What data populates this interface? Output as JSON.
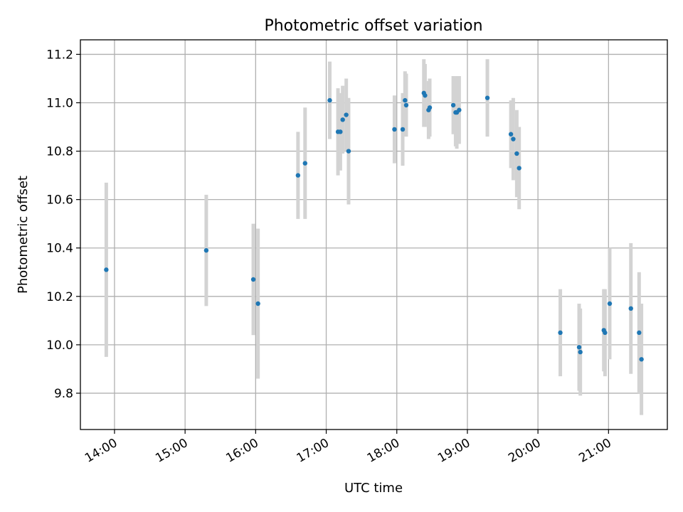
{
  "chart_data": {
    "type": "scatter",
    "title": "Photometric offset variation",
    "xlabel": "UTC time",
    "ylabel": "Photometric offset",
    "grid": true,
    "xlim": [
      "13:31",
      "21:50"
    ],
    "ylim": [
      9.65,
      11.26
    ],
    "x_ticks": [
      "14:00",
      "15:00",
      "16:00",
      "17:00",
      "18:00",
      "19:00",
      "20:00",
      "21:00"
    ],
    "y_ticks": [
      "9.8",
      "10.0",
      "10.2",
      "10.4",
      "10.6",
      "10.8",
      "11.0",
      "11.2"
    ],
    "colors": {
      "marker": "#1f77b4",
      "errorbar": "#d3d3d3",
      "grid": "#b0b0b0"
    },
    "series": [
      {
        "points": [
          {
            "x": "13:53",
            "y": 10.31,
            "yerr": 0.36
          },
          {
            "x": "15:18",
            "y": 10.39,
            "yerr": 0.23
          },
          {
            "x": "15:58",
            "y": 10.27,
            "yerr": 0.23
          },
          {
            "x": "16:02",
            "y": 10.17,
            "yerr": 0.31
          },
          {
            "x": "16:36",
            "y": 10.7,
            "yerr": 0.18
          },
          {
            "x": "16:42",
            "y": 10.75,
            "yerr": 0.23
          },
          {
            "x": "17:03",
            "y": 11.01,
            "yerr": 0.16
          },
          {
            "x": "17:10",
            "y": 10.88,
            "yerr": 0.18
          },
          {
            "x": "17:12",
            "y": 10.88,
            "yerr": 0.16
          },
          {
            "x": "17:14",
            "y": 10.93,
            "yerr": 0.14
          },
          {
            "x": "17:17",
            "y": 10.95,
            "yerr": 0.15
          },
          {
            "x": "17:19",
            "y": 10.8,
            "yerr": 0.22
          },
          {
            "x": "17:58",
            "y": 10.89,
            "yerr": 0.14
          },
          {
            "x": "18:05",
            "y": 10.89,
            "yerr": 0.15
          },
          {
            "x": "18:07",
            "y": 11.01,
            "yerr": 0.12
          },
          {
            "x": "18:08",
            "y": 10.99,
            "yerr": 0.13
          },
          {
            "x": "18:23",
            "y": 11.04,
            "yerr": 0.14
          },
          {
            "x": "18:24",
            "y": 11.03,
            "yerr": 0.13
          },
          {
            "x": "18:27",
            "y": 10.97,
            "yerr": 0.12
          },
          {
            "x": "18:28",
            "y": 10.98,
            "yerr": 0.12
          },
          {
            "x": "18:48",
            "y": 10.99,
            "yerr": 0.12
          },
          {
            "x": "18:50",
            "y": 10.96,
            "yerr": 0.14
          },
          {
            "x": "18:51",
            "y": 10.96,
            "yerr": 0.15
          },
          {
            "x": "18:53",
            "y": 10.97,
            "yerr": 0.14
          },
          {
            "x": "19:17",
            "y": 11.02,
            "yerr": 0.16
          },
          {
            "x": "19:37",
            "y": 10.87,
            "yerr": 0.14
          },
          {
            "x": "19:39",
            "y": 10.85,
            "yerr": 0.17
          },
          {
            "x": "19:42",
            "y": 10.79,
            "yerr": 0.18
          },
          {
            "x": "19:44",
            "y": 10.73,
            "yerr": 0.17
          },
          {
            "x": "20:19",
            "y": 10.05,
            "yerr": 0.18
          },
          {
            "x": "20:35",
            "y": 9.99,
            "yerr": 0.18
          },
          {
            "x": "20:36",
            "y": 9.97,
            "yerr": 0.18
          },
          {
            "x": "20:56",
            "y": 10.06,
            "yerr": 0.17
          },
          {
            "x": "20:57",
            "y": 10.05,
            "yerr": 0.18
          },
          {
            "x": "21:01",
            "y": 10.17,
            "yerr": 0.23
          },
          {
            "x": "21:19",
            "y": 10.15,
            "yerr": 0.27
          },
          {
            "x": "21:26",
            "y": 10.05,
            "yerr": 0.25
          },
          {
            "x": "21:28",
            "y": 9.94,
            "yerr": 0.23
          }
        ]
      }
    ]
  }
}
